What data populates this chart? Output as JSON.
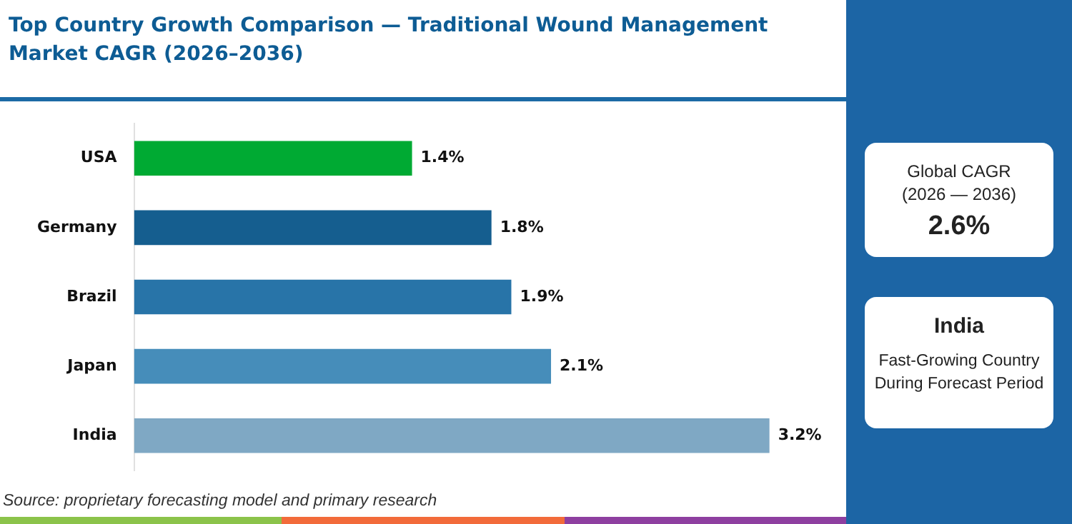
{
  "chart_data": {
    "type": "bar",
    "orientation": "horizontal",
    "title": "Top Country Growth Comparison — Traditional Wound Management Market CAGR (2026–2036)",
    "categories": [
      "USA",
      "Germany",
      "Brazil",
      "Japan",
      "India"
    ],
    "values": [
      1.4,
      1.8,
      1.9,
      2.1,
      3.2
    ],
    "colors": [
      "#00aa33",
      "#155e8f",
      "#2874a8",
      "#468dba",
      "#7fa8c4"
    ],
    "value_labels": [
      "1.4%",
      "1.8%",
      "1.9%",
      "2.1%",
      "3.2%"
    ],
    "grid": false,
    "annotations": [
      "Source: proprietary forecasting model and primary research",
      "Global CAGR",
      "(2026 — 2036)",
      "2.6%",
      "India",
      "Fast-Growing Country During Forecast Period"
    ]
  }
}
